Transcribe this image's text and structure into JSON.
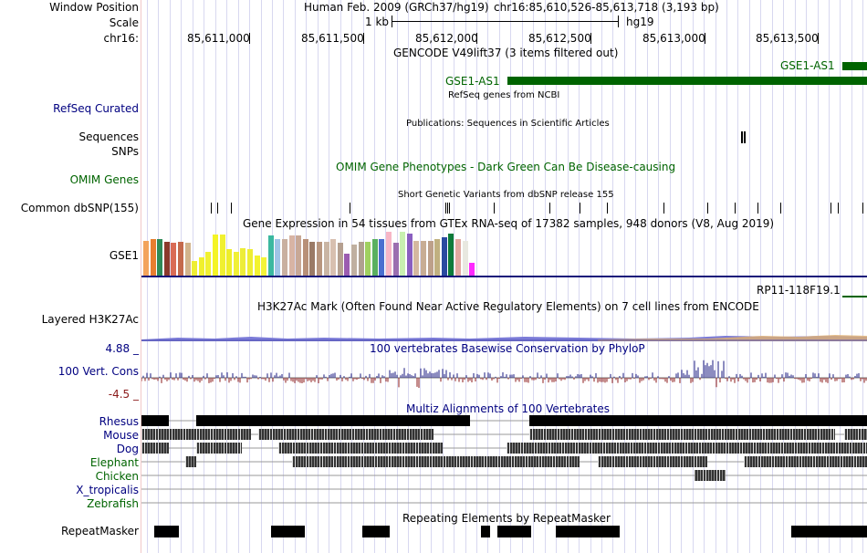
{
  "position": {
    "window_label": "Window Position",
    "assembly": "Human Feb. 2009 (GRCh37/hg19)",
    "coordinates": "chr16:85,610,526-85,613,718 (3,193 bp)",
    "scale_label": "Scale",
    "scale_value": "1 kb",
    "scale_db": "hg19",
    "chrom_label": "chr16:",
    "ticks": [
      "85,611,000",
      "85,611,500",
      "85,612,000",
      "85,612,500",
      "85,613,000",
      "85,613,500"
    ]
  },
  "tracks": {
    "gencode": {
      "title": "GENCODE V49lift37 (3 items filtered out)",
      "gene1": "GSE1-AS1",
      "gene2": "GSE1-AS1"
    },
    "refseq": {
      "label": "RefSeq Curated",
      "title": "RefSeq genes from NCBI"
    },
    "publications": {
      "title": "Publications: Sequences in Scientific Articles",
      "label1": "Sequences",
      "label2": "SNPs"
    },
    "omim": {
      "label": "OMIM Genes",
      "title": "OMIM Gene Phenotypes - Dark Green Can Be Disease-causing"
    },
    "dbsnp": {
      "label": "Common dbSNP(155)",
      "title": "Short Genetic Variants from dbSNP release 155"
    },
    "gtex": {
      "title": "Gene Expression in 54 tissues from GTEx RNA-seq of 17382 samples, 948 donors (V8, Aug 2019)",
      "label": "GSE1",
      "gene_label": "RP11-118F19.1"
    },
    "h3k27ac": {
      "label": "Layered H3K27Ac",
      "title": "H3K27Ac Mark (Often Found Near Active Regulatory Elements) on 7 cell lines from ENCODE"
    },
    "phylop": {
      "label": "100 Vert. Cons",
      "max": "4.88 _",
      "min": "-4.5 _",
      "title": "100 vertebrates Basewise Conservation by PhyloP"
    },
    "multiz": {
      "title": "Multiz Alignments of 100 Vertebrates",
      "species": [
        {
          "name": "Rhesus",
          "color": "#000080"
        },
        {
          "name": "Mouse",
          "color": "#000080"
        },
        {
          "name": "Dog",
          "color": "#000080"
        },
        {
          "name": "Elephant",
          "color": "#006400"
        },
        {
          "name": "Chicken",
          "color": "#006400"
        },
        {
          "name": "X_tropicalis",
          "color": "#000080"
        },
        {
          "name": "Zebrafish",
          "color": "#006400"
        }
      ]
    },
    "repeatmasker": {
      "label": "RepeatMasker",
      "title": "Repeating Elements by RepeatMasker"
    }
  },
  "colors": {
    "navy": "#000080",
    "gene_green": "#006400",
    "phylop_pos": "#1a1a80",
    "phylop_neg": "#8b1a1a"
  }
}
